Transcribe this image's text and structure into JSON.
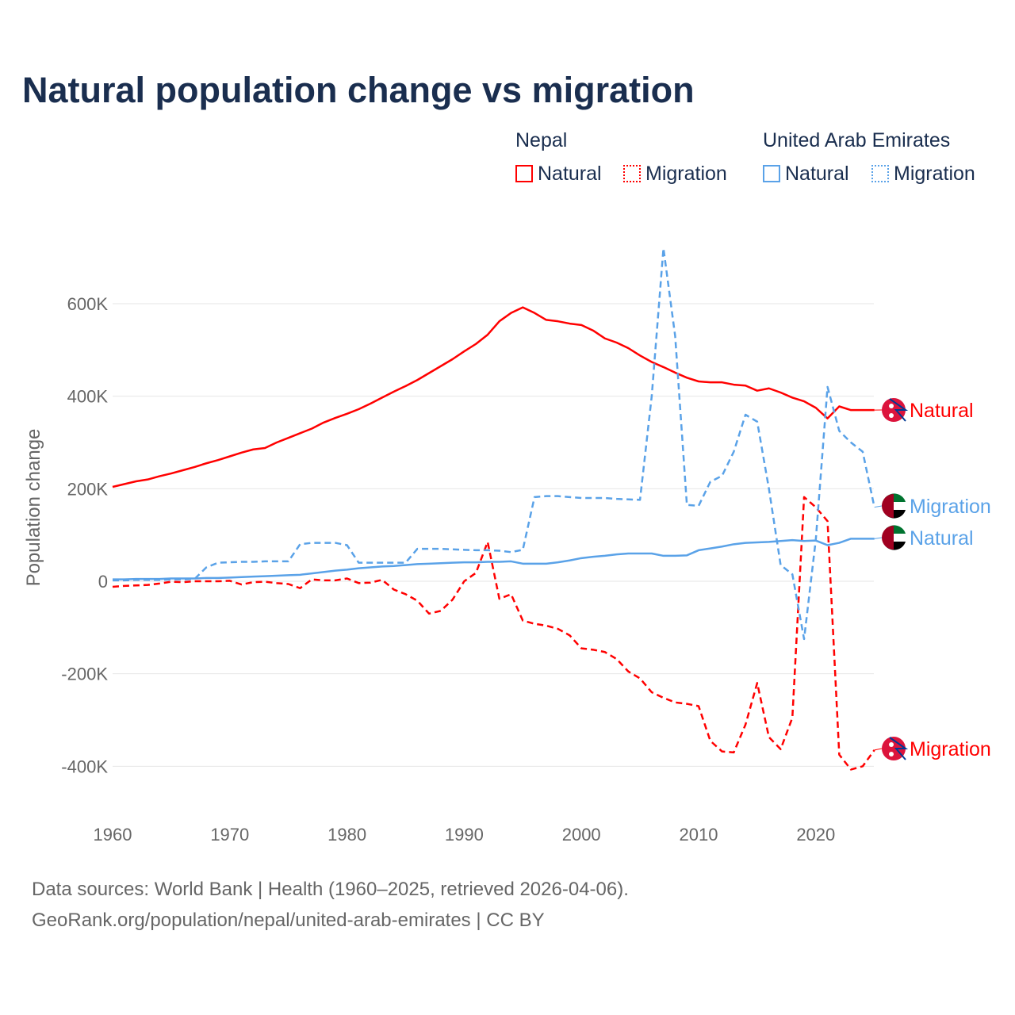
{
  "title": "Natural population change vs migration",
  "legend": {
    "groups": [
      {
        "name": "Nepal",
        "items": [
          "Natural",
          "Migration"
        ],
        "color": "#ff0000"
      },
      {
        "name": "United Arab Emirates",
        "items": [
          "Natural",
          "Migration"
        ],
        "color": "#5aa2e8"
      }
    ]
  },
  "footer": {
    "line1": "Data sources: World Bank | Health (1960–2025, retrieved 2026-04-06).",
    "line2": "GeoRank.org/population/nepal/united-arab-emirates | CC BY"
  },
  "chart_data": {
    "type": "line",
    "title": "Natural population change vs migration",
    "xlabel": "",
    "ylabel": "Population change",
    "xlim": [
      1960,
      2025
    ],
    "ylim": [
      -500000,
      720000
    ],
    "xticks": [
      1960,
      1970,
      1980,
      1990,
      2000,
      2010,
      2020
    ],
    "xtick_labels": [
      "1960",
      "1970",
      "1980",
      "1990",
      "2000",
      "2010",
      "2020"
    ],
    "yticks": [
      -400000,
      -200000,
      0,
      200000,
      400000,
      600000
    ],
    "ytick_labels": [
      "-400K",
      "-200K",
      "0",
      "200K",
      "400K",
      "600K"
    ],
    "grid": true,
    "x_start": 1960,
    "series": [
      {
        "name": "Natural",
        "country": "Nepal",
        "color": "#ff0000",
        "dash": false,
        "end_label": "Natural",
        "values": [
          204,
          210,
          216,
          220,
          227,
          233,
          240,
          247,
          255,
          262,
          270,
          278,
          285,
          288,
          300,
          310,
          320,
          330,
          343,
          353,
          362,
          372,
          384,
          397,
          410,
          422,
          435,
          450,
          465,
          480,
          497,
          513,
          533,
          562,
          580,
          592,
          580,
          565,
          562,
          557,
          554,
          542,
          525,
          516,
          504,
          488,
          474,
          463,
          451,
          440,
          432,
          430,
          430,
          425,
          423,
          412,
          417,
          408,
          397,
          389,
          375,
          352,
          378,
          370,
          370,
          370
        ]
      },
      {
        "name": "Migration",
        "country": "Nepal",
        "color": "#ff0000",
        "dash": true,
        "end_label": "Migration",
        "values": [
          -12,
          -10,
          -9,
          -8,
          -5,
          -1,
          -2,
          0,
          0,
          0,
          1,
          -7,
          -2,
          -1,
          -4,
          -6,
          -15,
          4,
          2,
          2,
          6,
          -4,
          -3,
          3,
          -18,
          -28,
          -42,
          -70,
          -64,
          -40,
          0,
          18,
          85,
          -38,
          -28,
          -85,
          -92,
          -96,
          -103,
          -117,
          -145,
          -148,
          -153,
          -168,
          -195,
          -210,
          -240,
          -252,
          -262,
          -265,
          -270,
          -345,
          -368,
          -370,
          -310,
          -220,
          -337,
          -363,
          -295,
          182,
          160,
          130,
          -375,
          -407,
          -400,
          -365
        ]
      },
      {
        "name": "Natural",
        "country": "United Arab Emirates",
        "color": "#5aa2e8",
        "dash": false,
        "end_label": "Natural",
        "values": [
          4,
          4,
          5,
          5,
          5,
          6,
          6,
          6,
          7,
          7,
          8,
          9,
          10,
          11,
          12,
          13,
          14,
          17,
          20,
          23,
          25,
          28,
          30,
          32,
          33,
          35,
          37,
          38,
          39,
          40,
          41,
          41,
          42,
          42,
          43,
          38,
          38,
          38,
          41,
          45,
          50,
          53,
          55,
          58,
          60,
          60,
          60,
          55,
          55,
          56,
          67,
          71,
          75,
          80,
          83,
          84,
          85,
          87,
          89,
          87,
          88,
          78,
          83,
          92,
          92,
          92
        ]
      },
      {
        "name": "Migration",
        "country": "United Arab Emirates",
        "color": "#5aa2e8",
        "dash": true,
        "end_label": "Migration",
        "values": [
          2,
          2,
          3,
          3,
          3,
          4,
          4,
          5,
          30,
          40,
          41,
          42,
          42,
          43,
          43,
          43,
          80,
          83,
          83,
          83,
          78,
          40,
          40,
          40,
          40,
          40,
          70,
          70,
          70,
          69,
          68,
          67,
          67,
          66,
          63,
          68,
          182,
          184,
          184,
          182,
          180,
          180,
          180,
          178,
          177,
          176,
          400,
          720,
          530,
          165,
          163,
          215,
          228,
          280,
          360,
          345,
          200,
          35,
          15,
          -125,
          90,
          420,
          325,
          300,
          280,
          160
        ]
      }
    ]
  }
}
